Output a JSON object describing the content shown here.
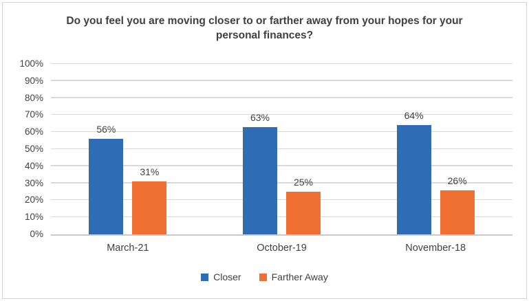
{
  "chart_data": {
    "type": "bar",
    "title": "Do you feel you are moving closer to or farther away from your hopes for your personal finances?",
    "categories": [
      "March-21",
      "October-19",
      "November-18"
    ],
    "series": [
      {
        "name": "Closer",
        "color": "#2F6CB6",
        "values": [
          56,
          63,
          64
        ]
      },
      {
        "name": "Farther Away",
        "color": "#F07033",
        "values": [
          31,
          25,
          26
        ]
      }
    ],
    "value_suffix": "%",
    "xlabel": "",
    "ylabel": "",
    "ylim": [
      0,
      100
    ],
    "ytick_values": [
      0,
      10,
      20,
      30,
      40,
      50,
      60,
      70,
      80,
      90,
      100
    ],
    "ytick_labels": [
      "0%",
      "10%",
      "20%",
      "30%",
      "40%",
      "50%",
      "60%",
      "70%",
      "80%",
      "90%",
      "100%"
    ],
    "grid": true,
    "legend_position": "bottom"
  },
  "frame": {
    "border_color": "#d4d4d4",
    "gridline_color": "#d9d9d9",
    "axis_line_color": "#c9c9c9",
    "text_color": "#404040"
  }
}
